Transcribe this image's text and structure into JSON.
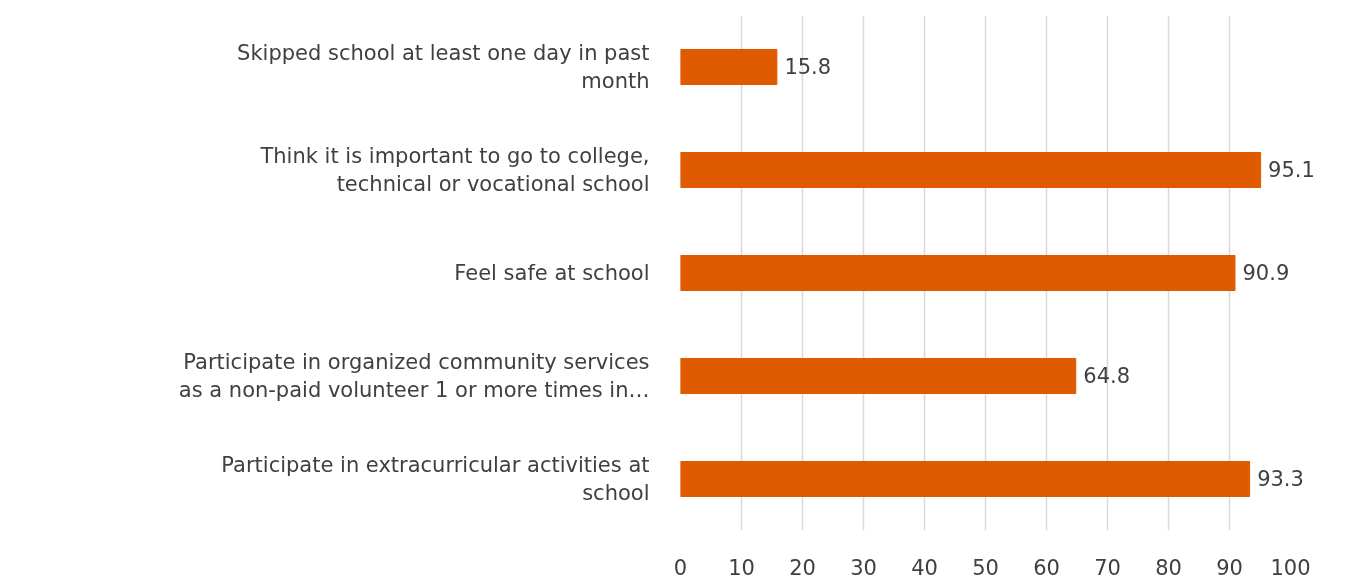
{
  "chart_data": {
    "type": "bar",
    "orientation": "horizontal",
    "categories": [
      "Skipped school at least one day in past month",
      "Think it is important to go to college, technical or vocational school",
      "Feel safe at school",
      "Participate in organized community services as a non-paid volunteer 1 or more times in…",
      "Participate in extracurricular activities at school"
    ],
    "values": [
      15.8,
      95.1,
      90.9,
      64.8,
      93.3
    ],
    "color": "#e05a00",
    "xlim": [
      0,
      100
    ],
    "xticks": [
      0,
      10,
      20,
      30,
      40,
      50,
      60,
      70,
      80,
      90,
      100
    ],
    "grid": "x",
    "data_labels": true
  }
}
